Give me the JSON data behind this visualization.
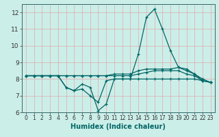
{
  "title": "",
  "xlabel": "Humidex (Indice chaleur)",
  "bg_color": "#cceee8",
  "grid_color": "#ddaaaa",
  "line_color": "#006666",
  "xmin": -0.5,
  "xmax": 23.5,
  "ymin": 6,
  "ymax": 12.5,
  "yticks": [
    6,
    7,
    8,
    9,
    10,
    11,
    12
  ],
  "xticks": [
    0,
    1,
    2,
    3,
    4,
    5,
    6,
    7,
    8,
    9,
    10,
    11,
    12,
    13,
    14,
    15,
    16,
    17,
    18,
    19,
    20,
    21,
    22,
    23
  ],
  "series": [
    [
      8.2,
      8.2,
      8.2,
      8.2,
      8.2,
      7.5,
      7.3,
      7.4,
      7.0,
      6.6,
      7.9,
      8.0,
      8.0,
      8.0,
      9.5,
      11.7,
      12.2,
      11.0,
      9.7,
      8.7,
      8.5,
      8.3,
      7.9,
      7.8
    ],
    [
      8.2,
      8.2,
      8.2,
      8.2,
      8.2,
      7.5,
      7.3,
      7.7,
      7.5,
      6.1,
      6.5,
      8.0,
      8.0,
      8.0,
      8.0,
      8.0,
      8.0,
      8.0,
      8.0,
      8.0,
      8.0,
      8.0,
      7.9,
      7.8
    ],
    [
      8.2,
      8.2,
      8.2,
      8.2,
      8.2,
      8.2,
      8.2,
      8.2,
      8.2,
      8.2,
      8.2,
      8.3,
      8.3,
      8.3,
      8.5,
      8.6,
      8.6,
      8.6,
      8.6,
      8.7,
      8.6,
      8.3,
      8.0,
      7.8
    ],
    [
      8.2,
      8.2,
      8.2,
      8.2,
      8.2,
      8.2,
      8.2,
      8.2,
      8.2,
      8.2,
      8.2,
      8.2,
      8.2,
      8.2,
      8.3,
      8.4,
      8.5,
      8.5,
      8.5,
      8.5,
      8.3,
      8.2,
      7.9,
      7.8
    ]
  ],
  "xlabel_color": "#006666",
  "xlabel_fontsize": 7,
  "tick_fontsize": 5.5,
  "ytick_fontsize": 6.5,
  "linewidth": 0.9,
  "markersize": 3
}
